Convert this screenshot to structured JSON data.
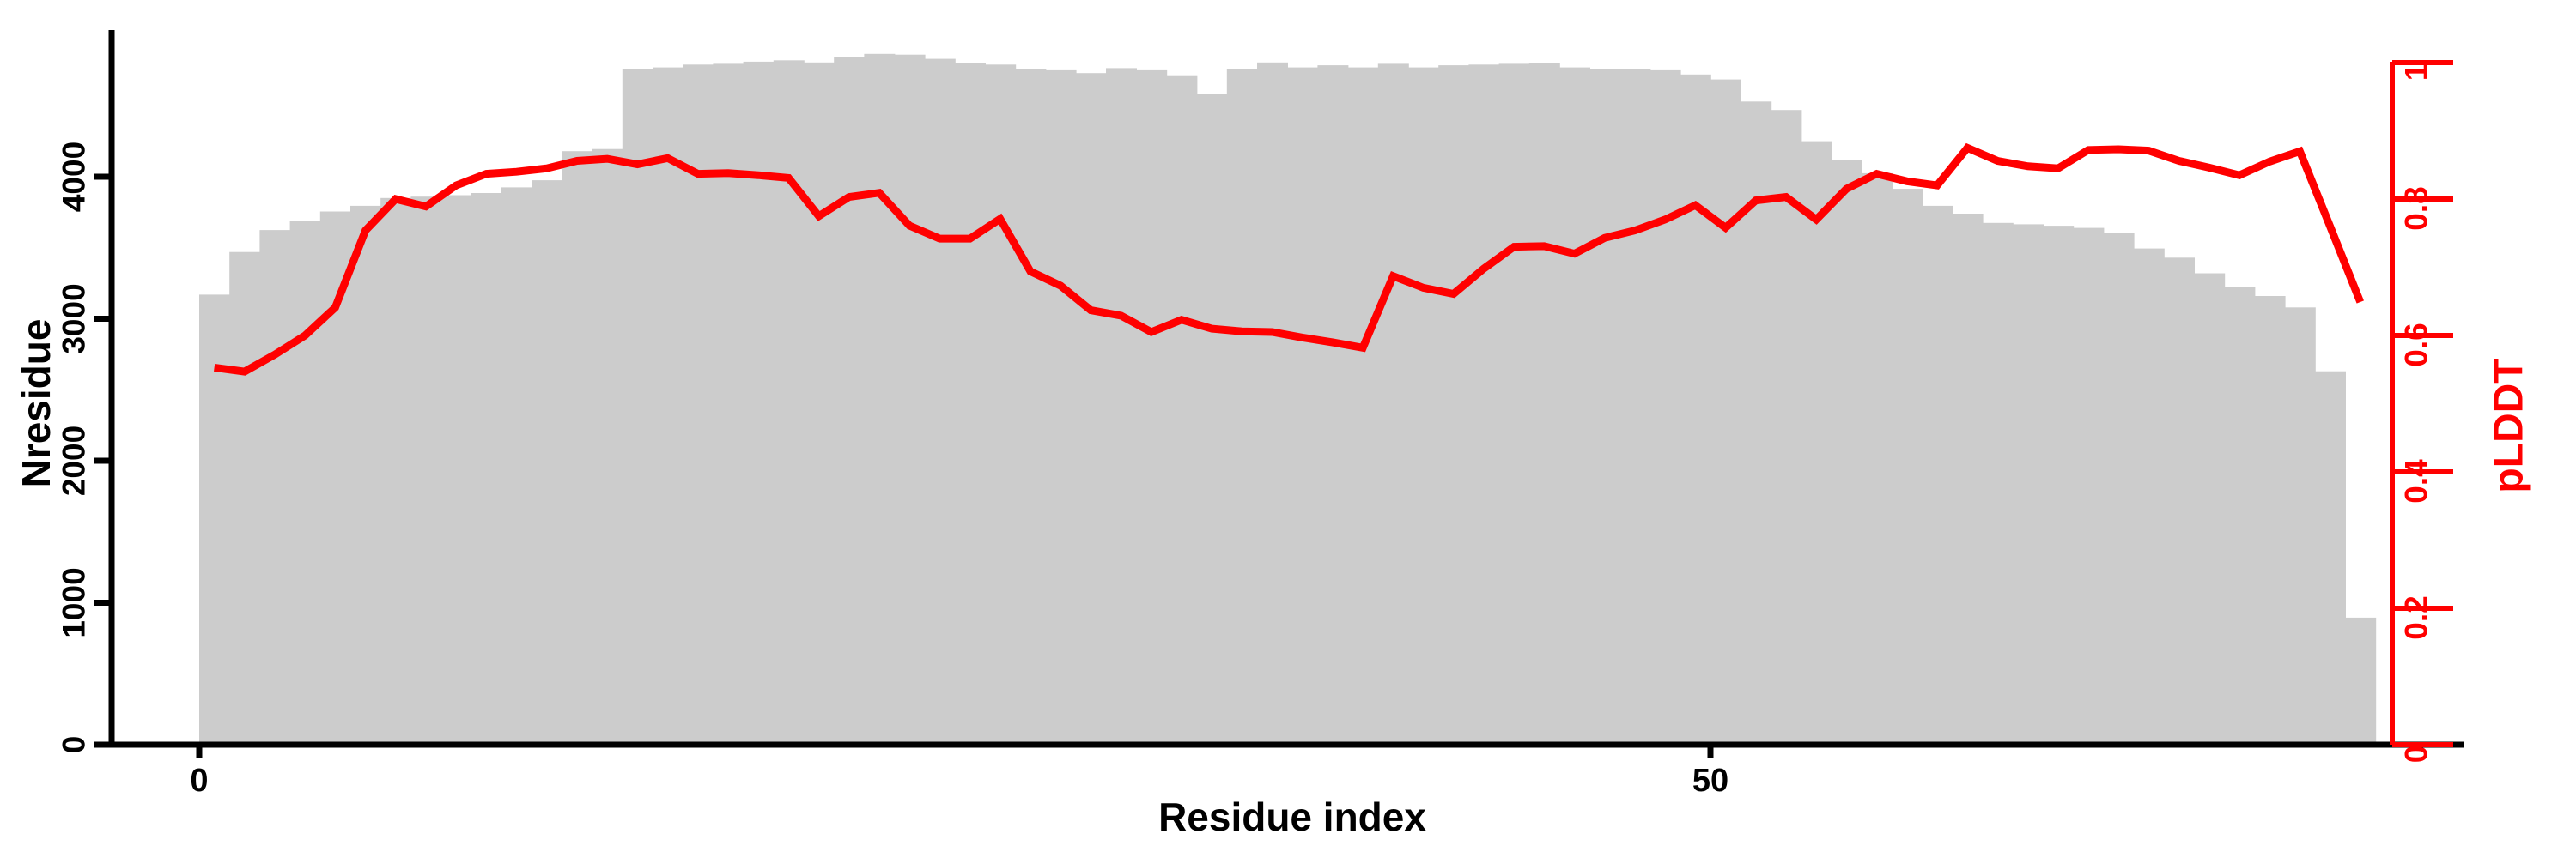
{
  "colors": {
    "background": "#ffffff",
    "bar_fill": "#cccccc",
    "line_color": "#ff0000",
    "left_axis_color": "#000000",
    "right_axis_color": "#ff0000"
  },
  "chart_data": {
    "type": "bar+line",
    "x_description": "residue index; bar k spans [k, k+1], line points plotted at bar centers k+0.5",
    "n_positions": 72,
    "xlabel": "Residue index",
    "x_ticks": [
      {
        "value": 0,
        "label": "0"
      },
      {
        "value": 50,
        "label": "50"
      }
    ],
    "x_range": [
      0,
      75
    ],
    "left_axis": {
      "label": "Nresidue",
      "ticks": [
        0,
        1000,
        2000,
        3000,
        4000
      ],
      "tick_labels": [
        "0",
        "1000",
        "2000",
        "3000",
        "4000"
      ],
      "range": [
        0,
        5030
      ]
    },
    "right_axis": {
      "label": "pLDDT",
      "ticks": [
        0,
        0.2,
        0.4,
        0.6,
        0.8,
        1
      ],
      "tick_labels": [
        "0",
        "0.2",
        "0.4",
        "0.6",
        "0.8",
        "1"
      ],
      "range": [
        0,
        1.0
      ]
    },
    "grid": false,
    "legend": "none",
    "series": [
      {
        "name": "Nresidue",
        "type": "bar",
        "axis": "left",
        "values": [
          3170,
          3470,
          3625,
          3690,
          3755,
          3795,
          3850,
          3860,
          3870,
          3885,
          3925,
          3975,
          4180,
          4195,
          4760,
          4770,
          4790,
          4795,
          4810,
          4820,
          4805,
          4845,
          4865,
          4860,
          4830,
          4800,
          4790,
          4760,
          4750,
          4730,
          4765,
          4750,
          4715,
          4580,
          4760,
          4805,
          4770,
          4785,
          4770,
          4795,
          4770,
          4785,
          4790,
          4795,
          4800,
          4770,
          4760,
          4755,
          4750,
          4720,
          4685,
          4530,
          4470,
          4250,
          4115,
          4025,
          3915,
          3795,
          3740,
          3675,
          3665,
          3655,
          3640,
          3605,
          3495,
          3430,
          3320,
          3225,
          3160,
          3080,
          2630,
          895
        ]
      },
      {
        "name": "pLDDT",
        "type": "line",
        "axis": "right",
        "values": [
          0.553,
          0.547,
          0.572,
          0.6,
          0.641,
          0.754,
          0.8,
          0.789,
          0.82,
          0.837,
          0.84,
          0.845,
          0.856,
          0.859,
          0.851,
          0.86,
          0.837,
          0.838,
          0.835,
          0.831,
          0.775,
          0.803,
          0.809,
          0.761,
          0.742,
          0.742,
          0.771,
          0.694,
          0.673,
          0.637,
          0.629,
          0.605,
          0.623,
          0.61,
          0.606,
          0.605,
          0.597,
          0.59,
          0.582,
          0.687,
          0.67,
          0.661,
          0.698,
          0.73,
          0.731,
          0.72,
          0.743,
          0.754,
          0.77,
          0.791,
          0.758,
          0.798,
          0.803,
          0.77,
          0.815,
          0.837,
          0.826,
          0.82,
          0.875,
          0.856,
          0.848,
          0.845,
          0.872,
          0.873,
          0.871,
          0.856,
          0.846,
          0.835,
          0.855,
          0.87,
          0.76,
          0.649
        ]
      }
    ]
  }
}
